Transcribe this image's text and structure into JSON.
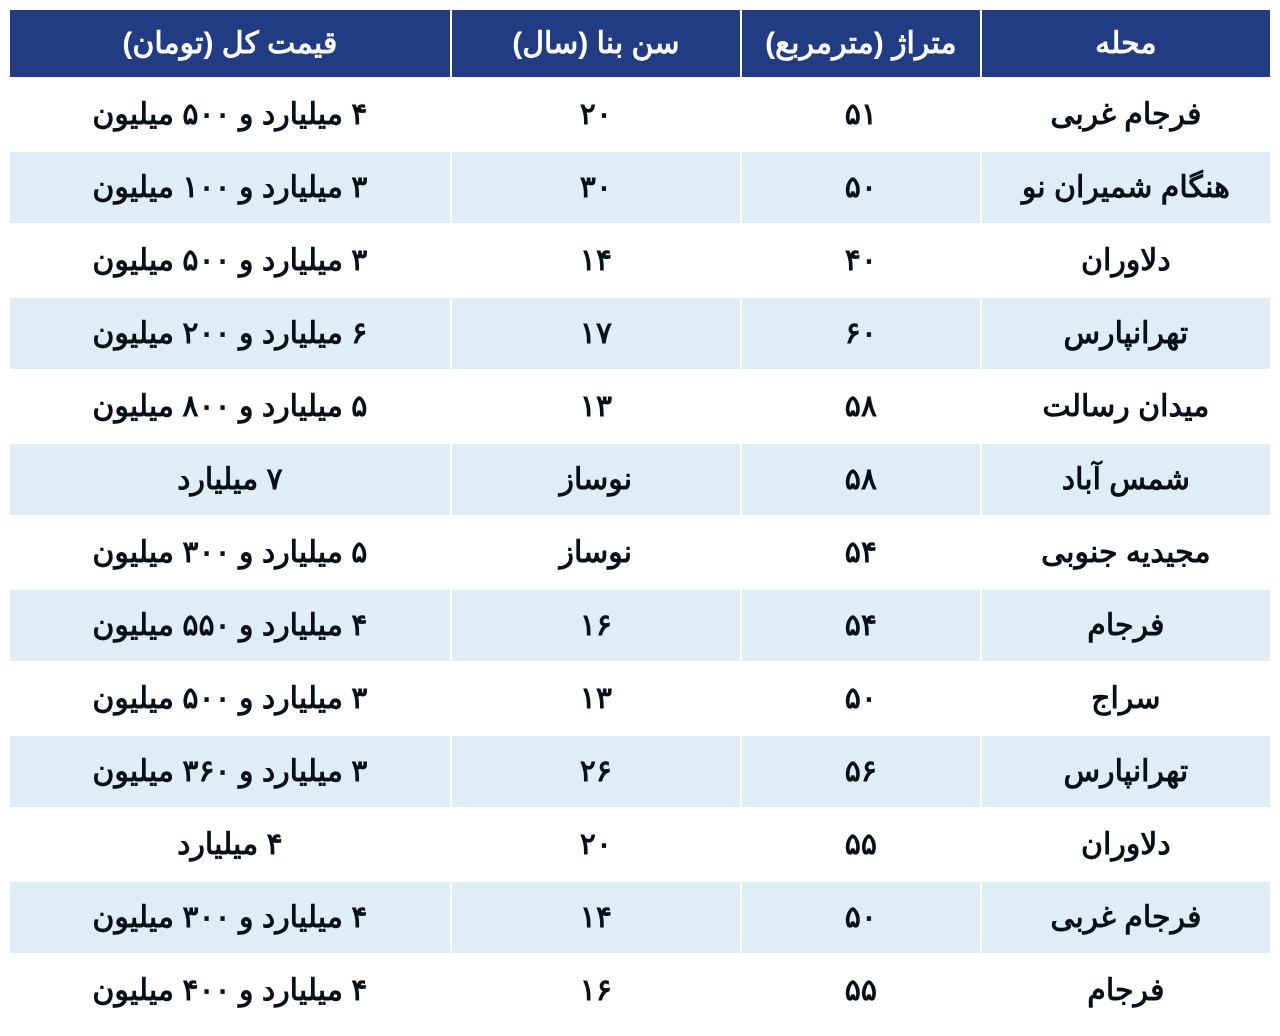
{
  "table": {
    "header_bg": "#213c82",
    "header_fg": "#ffffff",
    "row_odd_bg": "#ffffff",
    "row_even_bg": "#dfeef6",
    "text_color": "#071019",
    "font_size": 30,
    "col_widths": [
      "23%",
      "19%",
      "23%",
      "35%"
    ],
    "columns": [
      "محله",
      "متراژ (مترمربع)",
      "سن بنا (سال)",
      "قیمت کل (تومان)"
    ],
    "rows": [
      [
        "فرجام غربی",
        "۵۱",
        "۲۰",
        "۴ میلیارد و ۵۰۰ میلیون"
      ],
      [
        "هنگام شمیران نو",
        "۵۰",
        "۳۰",
        "۳ میلیارد و ۱۰۰ میلیون"
      ],
      [
        "دلاوران",
        "۴۰",
        "۱۴",
        "۳ میلیارد و ۵۰۰ میلیون"
      ],
      [
        "تهرانپارس",
        "۶۰",
        "۱۷",
        "۶ میلیارد و ۲۰۰ میلیون"
      ],
      [
        "میدان رسالت",
        "۵۸",
        "۱۳",
        "۵ میلیارد و ۸۰۰ میلیون"
      ],
      [
        "شمس آباد",
        "۵۸",
        "نوساز",
        "۷ میلیارد"
      ],
      [
        "مجیدیه جنوبی",
        "۵۴",
        "نوساز",
        "۵ میلیارد و ۳۰۰ میلیون"
      ],
      [
        "فرجام",
        "۵۴",
        "۱۶",
        "۴ میلیارد و ۵۵۰ میلیون"
      ],
      [
        "سراج",
        "۵۰",
        "۱۳",
        "۳ میلیارد و ۵۰۰ میلیون"
      ],
      [
        "تهرانپارس",
        "۵۶",
        "۲۶",
        "۳ میلیارد و ۳۶۰ میلیون"
      ],
      [
        "دلاوران",
        "۵۵",
        "۲۰",
        "۴ میلیارد"
      ],
      [
        "فرجام غربی",
        "۵۰",
        "۱۴",
        "۴ میلیارد و ۳۰۰ میلیون"
      ],
      [
        "فرجام",
        "۵۵",
        "۱۶",
        "۴ میلیارد و ۴۰۰ میلیون"
      ]
    ]
  }
}
